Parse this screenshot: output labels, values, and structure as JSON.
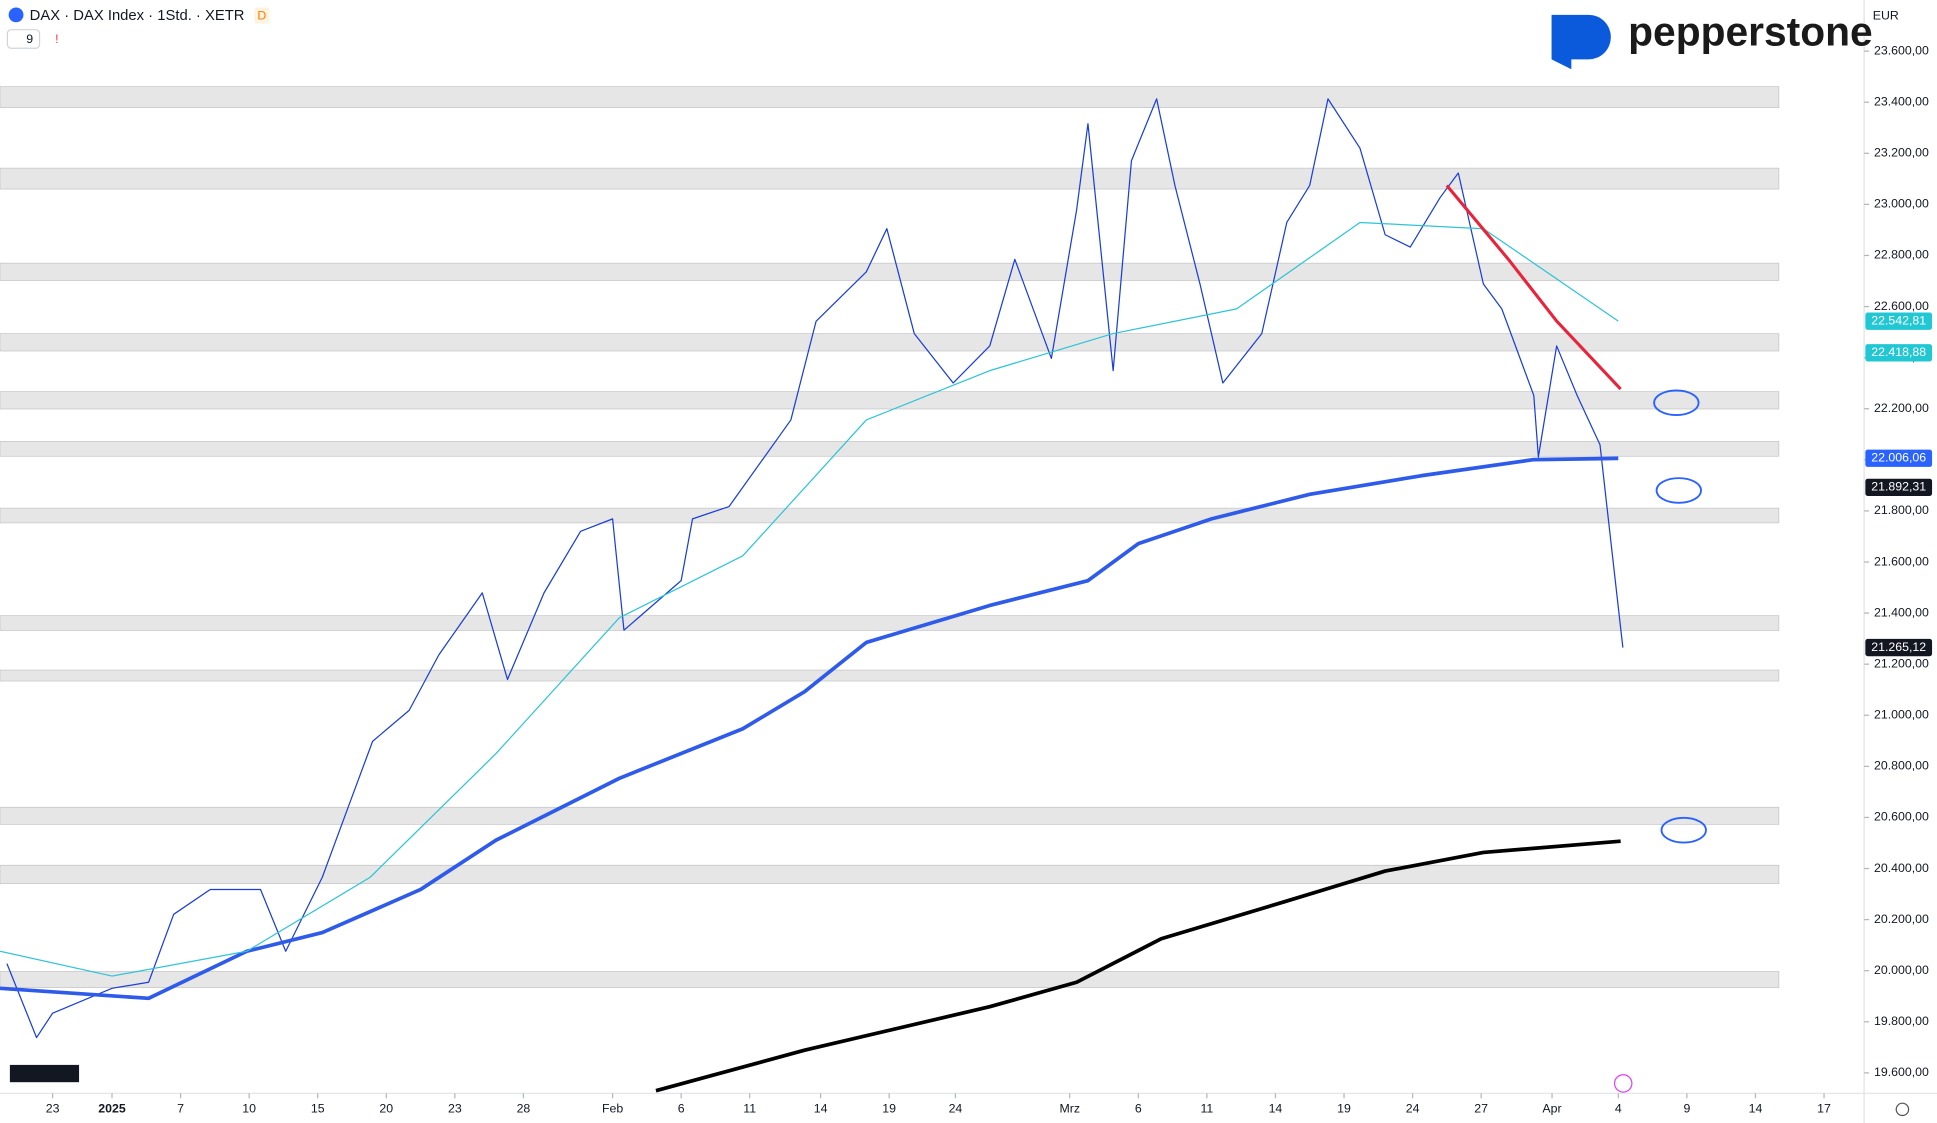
{
  "chart_data": {
    "type": "line",
    "title": "DAX · DAX Index · 1Std. · XETR",
    "interval_badge": "D",
    "indicator_count": "9",
    "alert_mark": "!",
    "currency": "EUR",
    "brand": "pepperstone",
    "xlim": [
      -2.3,
      79.2
    ],
    "xticks": [
      {
        "value": 0,
        "label": "23"
      },
      {
        "value": 2.6,
        "label": "2025"
      },
      {
        "value": 5.6,
        "label": "7"
      },
      {
        "value": 8.6,
        "label": "10"
      },
      {
        "value": 11.6,
        "label": "15"
      },
      {
        "value": 14.6,
        "label": "20"
      },
      {
        "value": 17.6,
        "label": "23"
      },
      {
        "value": 20.6,
        "label": "28"
      },
      {
        "value": 24.5,
        "label": "Feb"
      },
      {
        "value": 27.5,
        "label": "6"
      },
      {
        "value": 30.5,
        "label": "11"
      },
      {
        "value": 33.6,
        "label": "14"
      },
      {
        "value": 36.6,
        "label": "19"
      },
      {
        "value": 39.5,
        "label": "24"
      },
      {
        "value": 44.5,
        "label": "Mrz"
      },
      {
        "value": 47.5,
        "label": "6"
      },
      {
        "value": 50.5,
        "label": "11"
      },
      {
        "value": 53.5,
        "label": "14"
      },
      {
        "value": 56.5,
        "label": "19"
      },
      {
        "value": 59.5,
        "label": "24"
      },
      {
        "value": 62.5,
        "label": "27"
      },
      {
        "value": 65.6,
        "label": "Apr"
      },
      {
        "value": 68.5,
        "label": "4"
      },
      {
        "value": 71.5,
        "label": "9"
      },
      {
        "value": 74.5,
        "label": "14"
      },
      {
        "value": 77.5,
        "label": "17"
      }
    ],
    "ylim": [
      19520,
      23800
    ],
    "yticks": [
      {
        "value": 19600,
        "label": "19.600,00"
      },
      {
        "value": 19800,
        "label": "19.800,00"
      },
      {
        "value": 20000,
        "label": "20.000,00"
      },
      {
        "value": 20200,
        "label": "20.200,00"
      },
      {
        "value": 20400,
        "label": "20.400,00"
      },
      {
        "value": 20600,
        "label": "20.600,00"
      },
      {
        "value": 20800,
        "label": "20.800,00"
      },
      {
        "value": 21000,
        "label": "21.000,00"
      },
      {
        "value": 21200,
        "label": "21.200,00"
      },
      {
        "value": 21400,
        "label": "21.400,00"
      },
      {
        "value": 21600,
        "label": "21.600,00"
      },
      {
        "value": 21800,
        "label": "21.800,00"
      },
      {
        "value": 22000,
        "label": "22.000,00"
      },
      {
        "value": 22200,
        "label": "22.200,00"
      },
      {
        "value": 22400,
        "label": "22.400,00"
      },
      {
        "value": 22600,
        "label": "22.600,00"
      },
      {
        "value": 22800,
        "label": "22.800,00"
      },
      {
        "value": 23000,
        "label": "23.000,00"
      },
      {
        "value": 23200,
        "label": "23.200,00"
      },
      {
        "value": 23400,
        "label": "23.400,00"
      },
      {
        "value": 23600,
        "label": "23.600,00"
      }
    ],
    "zones": [
      [
        23379,
        23461
      ],
      [
        23060,
        23142
      ],
      [
        22702,
        22770
      ],
      [
        22426,
        22494
      ],
      [
        22199,
        22267
      ],
      [
        22014,
        22072
      ],
      [
        21753,
        21811
      ],
      [
        21332,
        21390
      ],
      [
        21134,
        21177
      ],
      [
        20573,
        20640
      ],
      [
        20341,
        20413
      ],
      [
        19934,
        19997
      ]
    ],
    "zone_color": "#e6e6e6",
    "series": [
      {
        "color": "#1a3fd6",
        "width": 1,
        "x": [
          -2.0,
          -0.7,
          0,
          2.6,
          4.2,
          5.3,
          6.9,
          9.1,
          10.2,
          11.8,
          12.9,
          14.0,
          15.6,
          16.9,
          18.8,
          19.9,
          21.5,
          23.1,
          24.5,
          25.0,
          27.5,
          28.0,
          29.6,
          32.3,
          33.4,
          35.6,
          36.5,
          37.7,
          39.4,
          41.0,
          42.1,
          43.7,
          44.8,
          45.3,
          46.4,
          47.2,
          48.3,
          49.1,
          50.2,
          51.2,
          52.9,
          54.0,
          55.0,
          55.8,
          57.2,
          58.3,
          59.4,
          60.7,
          61.5,
          62.6,
          63.4,
          64.8,
          65.0,
          65.8,
          66.7,
          67.7,
          68.0,
          68.7
        ],
        "values": [
          20028,
          19738,
          19834,
          19931,
          19955,
          20221,
          20318,
          20318,
          20076,
          20366,
          20632,
          20898,
          21019,
          21237,
          21479,
          21140,
          21479,
          21720,
          21769,
          21333,
          21527,
          21769,
          21817,
          22156,
          22542,
          22736,
          22905,
          22494,
          22301,
          22446,
          22785,
          22397,
          22978,
          23316,
          22349,
          23171,
          23413,
          23074,
          22688,
          22301,
          22494,
          22930,
          23074,
          23413,
          23220,
          22881,
          22833,
          23026,
          23123,
          22688,
          22591,
          22252,
          22011,
          22446,
          22252,
          22059,
          21817,
          21265
        ]
      },
      {
        "color": "#2f5bea",
        "width": 3,
        "x": [
          -2.3,
          4.2,
          8.5,
          11.8,
          16.1,
          19.4,
          24.8,
          30.2,
          32.9,
          35.6,
          41.0,
          45.3,
          47.5,
          50.7,
          55.0,
          59.9,
          64.8,
          68.5
        ],
        "values": [
          19931,
          19892,
          20076,
          20149,
          20318,
          20511,
          20753,
          20947,
          21092,
          21285,
          21430,
          21527,
          21672,
          21769,
          21865,
          21938,
          22001,
          22006
        ]
      },
      {
        "color": "#000000",
        "width": 3,
        "x": [
          26.4,
          32.9,
          41.0,
          44.8,
          48.5,
          53.9,
          58.3,
          62.6,
          68.6
        ],
        "values": [
          19530,
          19689,
          19859,
          19955,
          20125,
          20270,
          20390,
          20463,
          20507
        ]
      },
      {
        "color": "#2ec4d6",
        "width": 1,
        "x": [
          -2.3,
          2.6,
          8.5,
          13.9,
          19.4,
          24.8,
          30.2,
          35.6,
          41.0,
          46.4,
          51.8,
          57.2,
          62.6,
          68.5
        ],
        "values": [
          20076,
          19979,
          20076,
          20366,
          20850,
          21382,
          21624,
          22156,
          22349,
          22494,
          22591,
          22929,
          22905,
          22543
        ]
      },
      {
        "color": "#e8233a",
        "width": 2.5,
        "x": [
          61.0,
          63.7,
          65.8,
          68.6
        ],
        "values": [
          23074,
          22784,
          22543,
          22277
        ]
      }
    ],
    "price_labels": [
      {
        "value": 22542.81,
        "label": "22.542,81",
        "color": "#22c7d4"
      },
      {
        "value": 22418.88,
        "label": "22.418,88",
        "color": "#22c7d4"
      },
      {
        "value": 22006.06,
        "label": "22.006,06",
        "color": "#2962ff"
      },
      {
        "value": 21892.31,
        "label": "21.892,31",
        "color": "#131722"
      },
      {
        "value": 21265.12,
        "label": "21.265,12",
        "color": "#131722"
      }
    ]
  }
}
